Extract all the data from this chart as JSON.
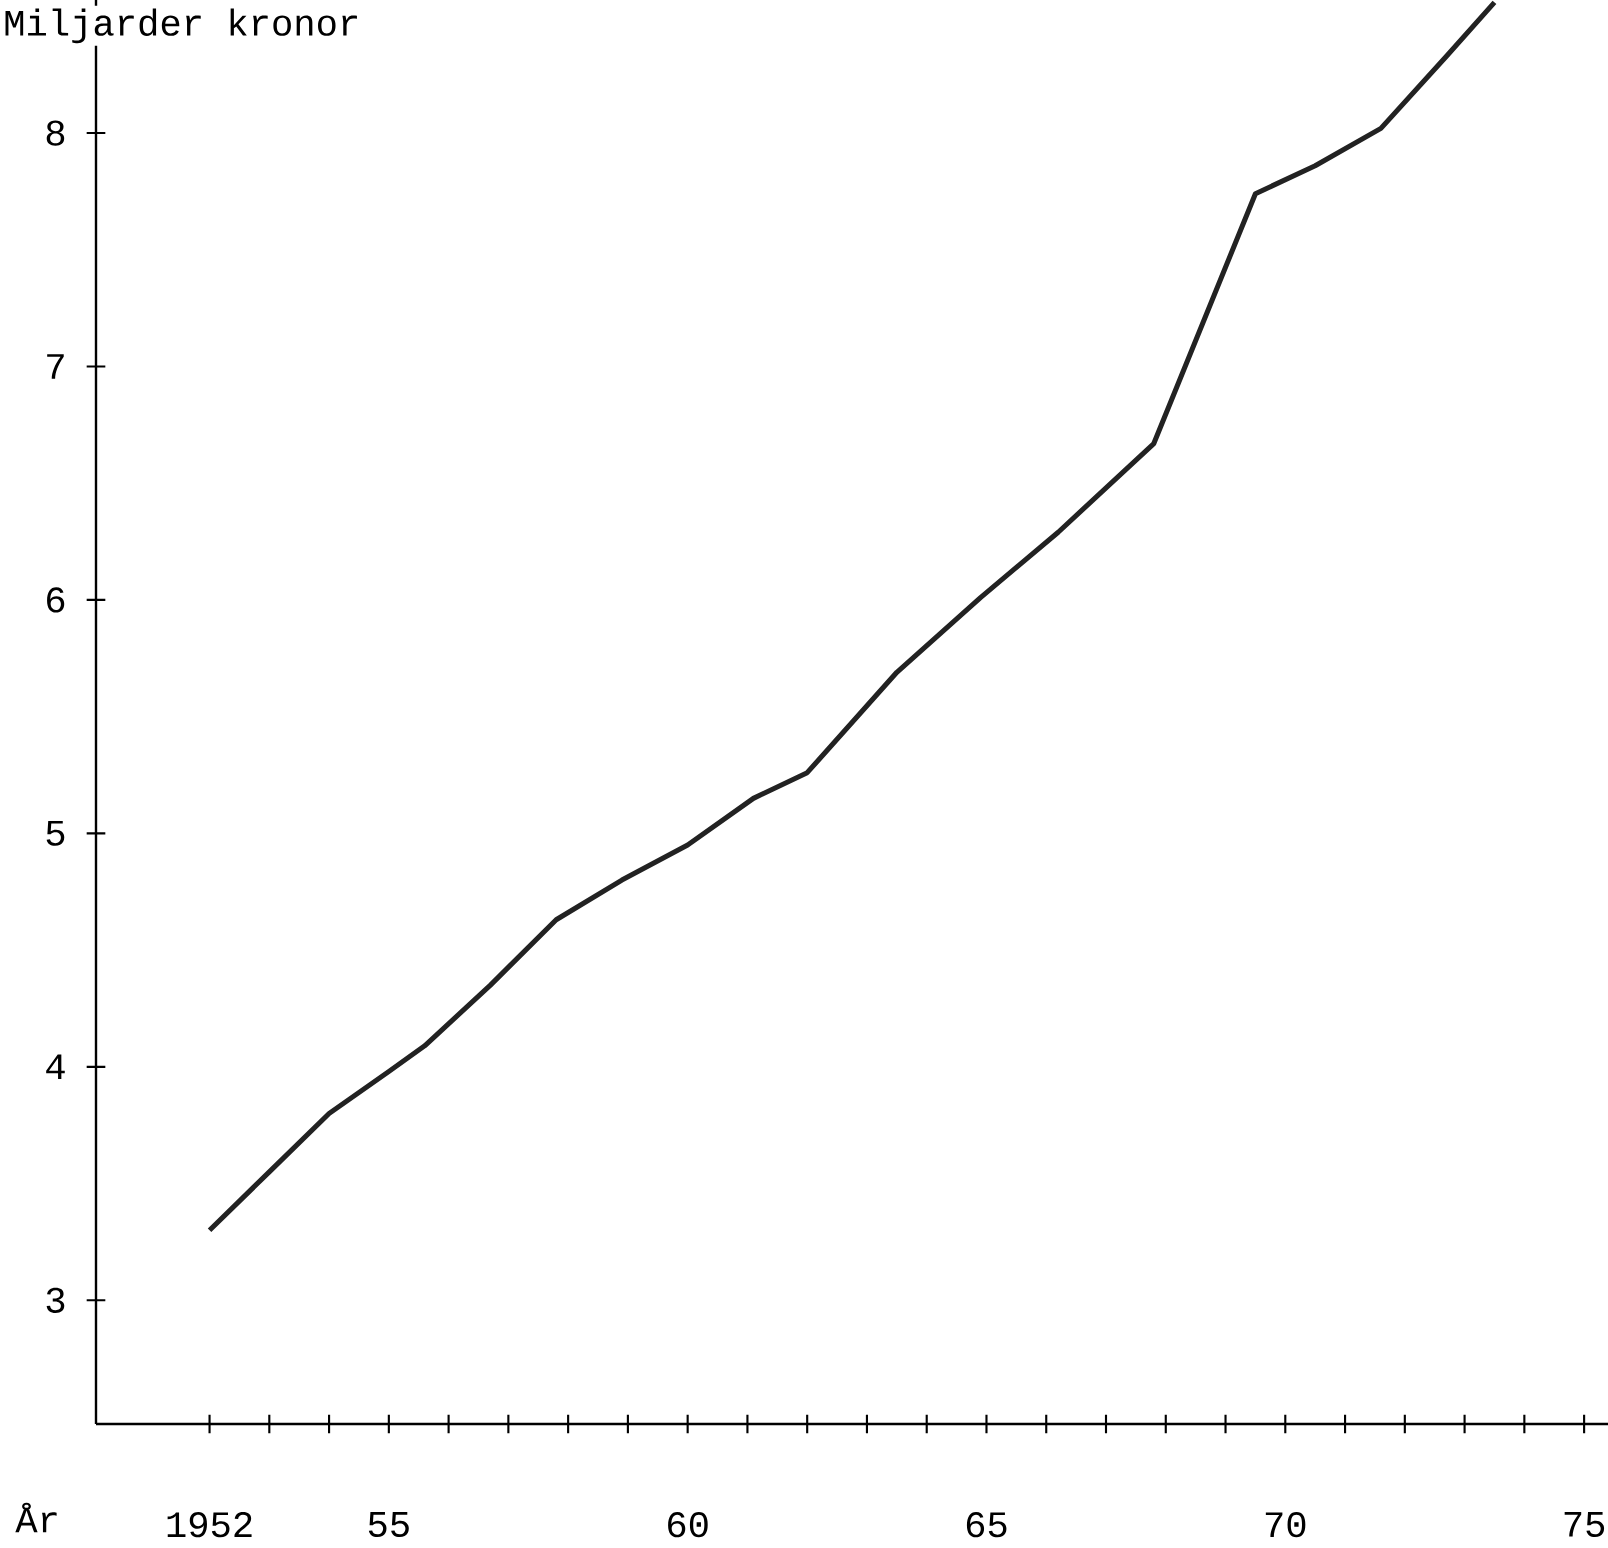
{
  "chart_data": {
    "type": "line",
    "xlabel": "År",
    "ylabel": "Miljarder kronor",
    "series": [
      {
        "color": "#222222",
        "line_style": "solid",
        "marker": "none",
        "x": [
          1952.0,
          1953.0,
          1954.0,
          1955.0,
          1955.6,
          1956.7,
          1957.8,
          1958.9,
          1960.0,
          1961.1,
          1962.0,
          1963.5,
          1964.9,
          1966.2,
          1967.8,
          1969.5,
          1970.5,
          1971.6,
          1972.7,
          1973.5
        ],
        "values": [
          3.3,
          3.55,
          3.8,
          3.98,
          4.09,
          4.35,
          4.63,
          4.8,
          4.95,
          5.15,
          5.26,
          5.69,
          6.01,
          6.29,
          6.67,
          7.74,
          7.86,
          8.02,
          8.33,
          8.56
        ]
      }
    ],
    "xlim": [
      1950.1,
      1975.4
    ],
    "ylim": [
      2.47,
      8.57
    ],
    "xticks": [
      {
        "value": 1952,
        "label": "1952"
      },
      {
        "value": 1953,
        "label": null
      },
      {
        "value": 1954,
        "label": null
      },
      {
        "value": 1955,
        "label": "55"
      },
      {
        "value": 1956,
        "label": null
      },
      {
        "value": 1957,
        "label": null
      },
      {
        "value": 1958,
        "label": null
      },
      {
        "value": 1959,
        "label": null
      },
      {
        "value": 1960,
        "label": "60"
      },
      {
        "value": 1961,
        "label": null
      },
      {
        "value": 1962,
        "label": null
      },
      {
        "value": 1963,
        "label": null
      },
      {
        "value": 1964,
        "label": null
      },
      {
        "value": 1965,
        "label": "65"
      },
      {
        "value": 1966,
        "label": null
      },
      {
        "value": 1967,
        "label": null
      },
      {
        "value": 1968,
        "label": null
      },
      {
        "value": 1969,
        "label": null
      },
      {
        "value": 1970,
        "label": "70"
      },
      {
        "value": 1971,
        "label": null
      },
      {
        "value": 1972,
        "label": null
      },
      {
        "value": 1973,
        "label": null
      },
      {
        "value": 1974,
        "label": null
      },
      {
        "value": 1975,
        "label": "75"
      }
    ],
    "yticks": [
      3,
      4,
      5,
      6,
      7,
      8
    ],
    "grid": false
  }
}
